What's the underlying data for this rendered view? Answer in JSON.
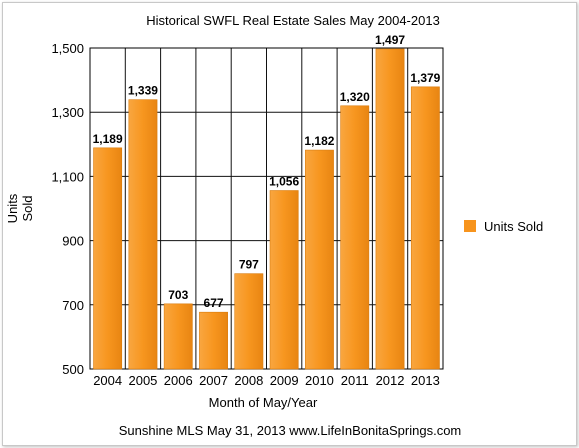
{
  "chart_data": {
    "type": "bar",
    "title": "Historical SWFL Real Estate Sales May 2004-2013",
    "categories": [
      "2004",
      "2005",
      "2006",
      "2007",
      "2008",
      "2009",
      "2010",
      "2011",
      "2012",
      "2013"
    ],
    "series": [
      {
        "name": "Units Sold",
        "values": [
          1189,
          1339,
          703,
          677,
          797,
          1056,
          1182,
          1320,
          1497,
          1379
        ],
        "data_labels": [
          "1,189",
          "1,339",
          "703",
          "677",
          "797",
          "1,056",
          "1,182",
          "1,320",
          "1,497",
          "1,379"
        ],
        "color": "#f7941d"
      }
    ],
    "xlabel": "Month of May/Year",
    "ylabel_lines": [
      "Units",
      "Sold"
    ],
    "ylim": [
      500,
      1500
    ],
    "yticks": [
      500,
      700,
      900,
      1100,
      1300,
      1500
    ],
    "ytick_labels": [
      "500",
      "700",
      "900",
      "1,100",
      "1,300",
      "1,500"
    ],
    "grid": true,
    "legend_position": "right",
    "source_note": "Sunshine MLS May 31, 2013 www.LifeInBonitaSprings.com"
  }
}
